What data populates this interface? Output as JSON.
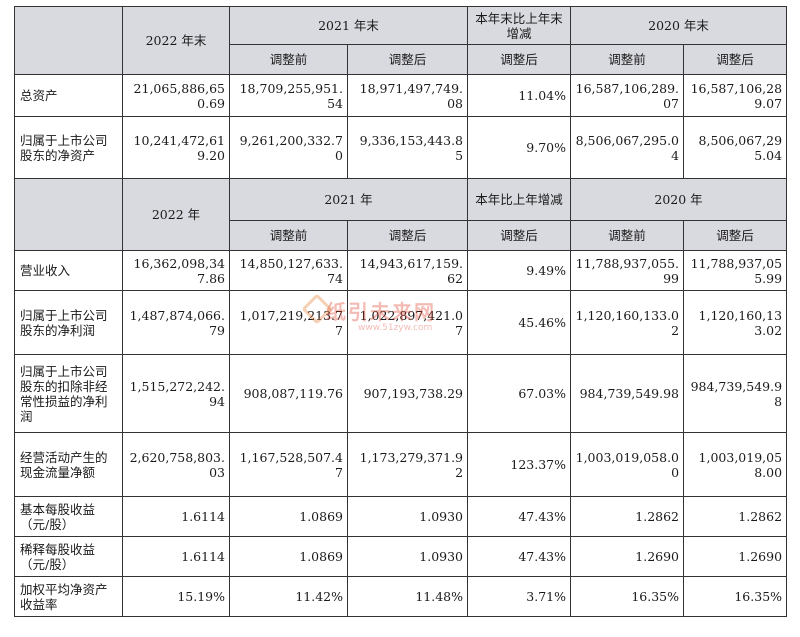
{
  "section1": {
    "col_2022": "2022 年末",
    "col_2021": "2021 年末",
    "col_change": "本年末比上年末增减",
    "col_2020": "2020 年末",
    "sub_before": "调整前",
    "sub_after": "调整后",
    "rows": [
      {
        "label": "总资产",
        "v2022": "21,065,886,650.69",
        "v2021_before": "18,709,255,951.54",
        "v2021_after": "18,971,497,749.08",
        "change": "11.04%",
        "v2020_before": "16,587,106,289.07",
        "v2020_after": "16,587,106,289.07"
      },
      {
        "label": "归属于上市公司股东的净资产",
        "v2022": "10,241,472,619.20",
        "v2021_before": "9,261,200,332.70",
        "v2021_after": "9,336,153,443.85",
        "change": "9.70%",
        "v2020_before": "8,506,067,295.04",
        "v2020_after": "8,506,067,295.04"
      }
    ]
  },
  "section2": {
    "col_2022": "2022 年",
    "col_2021": "2021 年",
    "col_change": "本年比上年增减",
    "col_2020": "2020 年",
    "sub_before": "调整前",
    "sub_after": "调整后",
    "rows": [
      {
        "label": "营业收入",
        "v2022": "16,362,098,347.86",
        "v2021_before": "14,850,127,633.74",
        "v2021_after": "14,943,617,159.62",
        "change": "9.49%",
        "v2020_before": "11,788,937,055.99",
        "v2020_after": "11,788,937,055.99"
      },
      {
        "label": "归属于上市公司股东的净利润",
        "v2022": "1,487,874,066.79",
        "v2021_before": "1,017,219,213.77",
        "v2021_after": "1,022,897,421.07",
        "change": "45.46%",
        "v2020_before": "1,120,160,133.02",
        "v2020_after": "1,120,160,133.02"
      },
      {
        "label": "归属于上市公司股东的扣除非经常性损益的净利润",
        "v2022": "1,515,272,242.94",
        "v2021_before": "908,087,119.76",
        "v2021_after": "907,193,738.29",
        "change": "67.03%",
        "v2020_before": "984,739,549.98",
        "v2020_after": "984,739,549.98"
      },
      {
        "label": "经营活动产生的现金流量净额",
        "v2022": "2,620,758,803.03",
        "v2021_before": "1,167,528,507.47",
        "v2021_after": "1,173,279,371.92",
        "change": "123.37%",
        "v2020_before": "1,003,019,058.00",
        "v2020_after": "1,003,019,058.00"
      },
      {
        "label": "基本每股收益（元/股）",
        "v2022": "1.6114",
        "v2021_before": "1.0869",
        "v2021_after": "1.0930",
        "change": "47.43%",
        "v2020_before": "1.2862",
        "v2020_after": "1.2862"
      },
      {
        "label": "稀释每股收益（元/股）",
        "v2022": "1.6114",
        "v2021_before": "1.0869",
        "v2021_after": "1.0930",
        "change": "47.43%",
        "v2020_before": "1.2690",
        "v2020_after": "1.2690"
      },
      {
        "label": "加权平均净资产收益率",
        "v2022": "15.19%",
        "v2021_before": "11.42%",
        "v2021_after": "11.48%",
        "change": "3.71%",
        "v2020_before": "16.35%",
        "v2020_after": "16.35%"
      }
    ]
  },
  "watermark": {
    "line1": "纸引未来网",
    "line2": "www.51zyw.com"
  }
}
